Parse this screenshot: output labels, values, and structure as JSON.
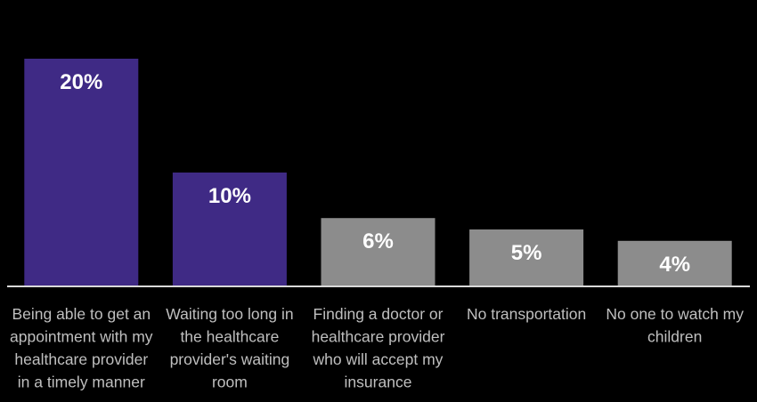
{
  "chart_data": {
    "type": "bar",
    "title": "",
    "xlabel": "",
    "ylabel": "",
    "ylim": [
      0,
      21
    ],
    "grid": false,
    "legend": "none",
    "categories": [
      [
        "Being able to get an",
        "appointment with my",
        "healthcare provider",
        "in a timely manner"
      ],
      [
        "Waiting too long in",
        "the healthcare",
        "provider's waiting",
        "room"
      ],
      [
        "Finding a doctor or",
        "healthcare provider",
        "who will accept my",
        "insurance"
      ],
      [
        "No transportation"
      ],
      [
        "No one to watch my",
        "children"
      ]
    ],
    "values": [
      20,
      10,
      6,
      5,
      4
    ],
    "value_labels": [
      "20%",
      "10%",
      "6%",
      "5%",
      "4%"
    ],
    "bar_colors": [
      "#3f2a85",
      "#3f2a85",
      "#8c8c8c",
      "#8c8c8c",
      "#8c8c8c"
    ],
    "axis_color": "#d9d9d9",
    "label_color": "#bfbfbf",
    "value_label_color": "#ffffff"
  }
}
